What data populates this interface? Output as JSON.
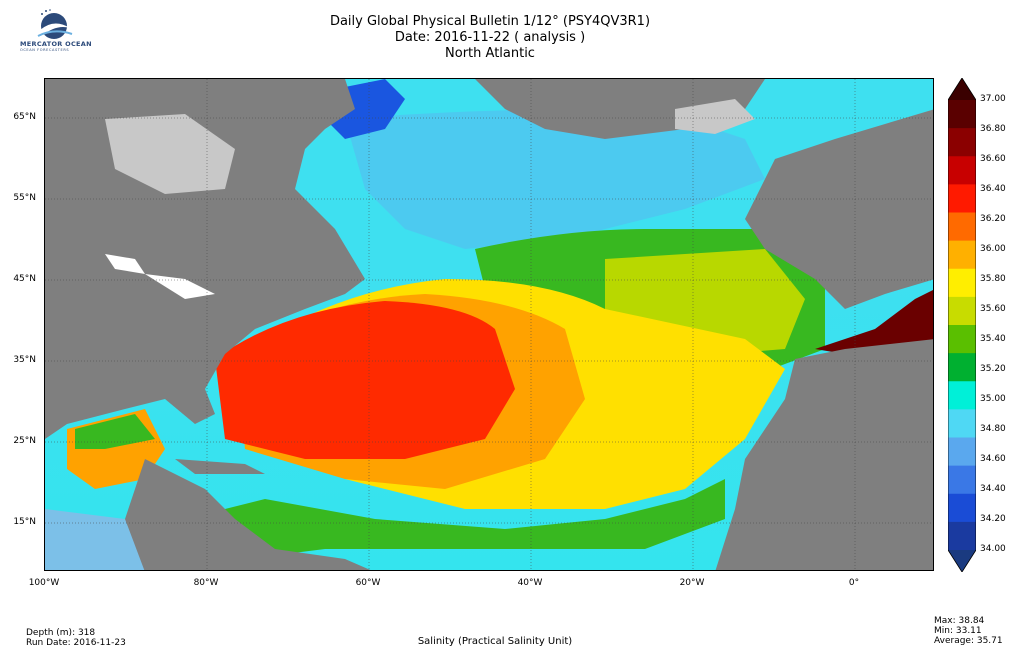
{
  "logo": {
    "name": "MERCATOR OCEAN",
    "subtitle": "OCEAN FORECASTERS"
  },
  "title": {
    "line1": "Daily Global Physical Bulletin 1/12° (PSY4QV3R1)",
    "line2": "Date: 2016-11-22 ( analysis )",
    "line3": "North Atlantic"
  },
  "axes": {
    "lat_ticks": [
      "65°N",
      "55°N",
      "45°N",
      "35°N",
      "25°N",
      "15°N"
    ],
    "lon_ticks": [
      "100°W",
      "80°W",
      "60°W",
      "40°W",
      "20°W",
      "0°"
    ]
  },
  "colorbar": {
    "labels": [
      "37.00",
      "36.80",
      "36.60",
      "36.40",
      "36.20",
      "36.00",
      "35.80",
      "35.60",
      "35.40",
      "35.20",
      "35.00",
      "34.80",
      "34.60",
      "34.40",
      "34.20",
      "34.00"
    ],
    "colors": [
      "#5a0000",
      "#8b0000",
      "#c80000",
      "#ff1a00",
      "#ff6a00",
      "#ffb000",
      "#ffee00",
      "#c8dc00",
      "#5abf00",
      "#00b030",
      "#00f0d8",
      "#4fd8f4",
      "#5aa8ee",
      "#3a78e6",
      "#1a4cd6",
      "#1a3aa0"
    ]
  },
  "footer": {
    "depth": "Depth (m): 318",
    "run_date": "Run Date: 2016-11-23",
    "variable": "Salinity (Practical Salinity Unit)",
    "max": "Max: 38.84",
    "min": "Min: 33.11",
    "average": "Average: 35.71"
  },
  "palette": {
    "land": "#7f7f7f",
    "ice": "#c8c8c8",
    "lake": "#ffffff",
    "cyan": "#34e4ee",
    "lightblue": "#4ccaf0",
    "blue": "#1a56e0",
    "green": "#38b820",
    "yellowgreen": "#b8d800",
    "yellow": "#ffe000",
    "orange": "#ffa200",
    "red": "#ff2a00",
    "darkred": "#6a0000"
  }
}
